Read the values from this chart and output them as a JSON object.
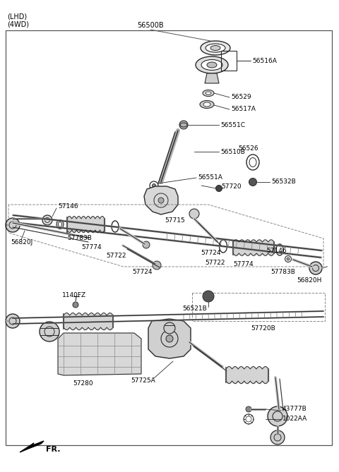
{
  "figsize": [
    4.8,
    6.69
  ],
  "dpi": 100,
  "background_color": "#ffffff",
  "line_color": "#2a2a2a",
  "text_color": "#000000",
  "labels": {
    "LHD_4WD": "(LHD)\n(4WD)",
    "56500B": "56500B",
    "56516A": "56516A",
    "56529": "56529",
    "56517A": "56517A",
    "56551C": "56551C",
    "56510B": "56510B",
    "56526": "56526",
    "56551A": "56551A",
    "57720": "57720",
    "56532B": "56532B",
    "57715": "57715",
    "57146L": "57146",
    "56820J": "56820J",
    "57783BL": "57783B",
    "57774L": "57774",
    "57722L": "57722",
    "57724L": "57724",
    "57724R": "57724",
    "57722R": "57722",
    "57774R": "57774",
    "57146R": "57146",
    "57783BR": "57783B",
    "56820H": "56820H",
    "1140FZ": "1140FZ",
    "57280": "57280",
    "57725A": "57725A",
    "56521B": "56521B",
    "57720B": "57720B",
    "43777B": "43777B",
    "1022AA": "1022AA",
    "FR": "FR."
  }
}
